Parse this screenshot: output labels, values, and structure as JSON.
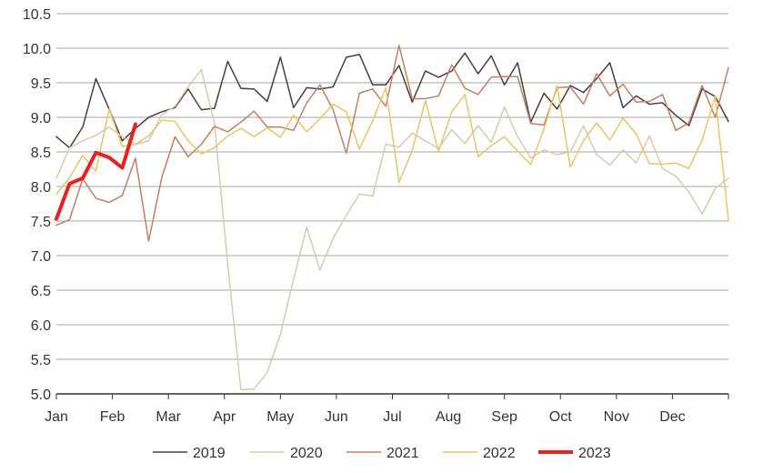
{
  "chart_data": {
    "type": "line",
    "title": "",
    "xlabel": "",
    "ylabel": "",
    "ylim": [
      5.0,
      10.5
    ],
    "yticks": [
      "5.0",
      "5.5",
      "6.0",
      "6.5",
      "7.0",
      "7.5",
      "8.0",
      "8.5",
      "9.0",
      "9.5",
      "10.0",
      "10.5"
    ],
    "xticks": [
      "Jan",
      "Feb",
      "Mar",
      "Apr",
      "May",
      "Jun",
      "Jul",
      "Aug",
      "Sep",
      "Oct",
      "Nov",
      "Dec"
    ],
    "grid": "horizontal",
    "legend_position": "bottom",
    "series": [
      {
        "name": "2019",
        "color": "#4a3f38",
        "width": 1.5,
        "values": [
          8.72,
          8.56,
          8.86,
          9.56,
          9.12,
          8.66,
          8.84,
          9.0,
          9.08,
          9.14,
          9.41,
          9.11,
          9.13,
          9.81,
          9.42,
          9.41,
          9.23,
          9.87,
          9.14,
          9.43,
          9.41,
          9.44,
          9.87,
          9.91,
          9.47,
          9.47,
          9.75,
          9.22,
          9.67,
          9.58,
          9.67,
          9.93,
          9.63,
          9.89,
          9.47,
          9.79,
          8.93,
          9.35,
          9.12,
          9.46,
          9.36,
          9.56,
          9.79,
          9.14,
          9.31,
          9.19,
          9.21,
          9.03,
          8.88,
          9.41,
          9.3,
          8.94
        ]
      },
      {
        "name": "2020",
        "color": "#d8c9b1",
        "width": 1.5,
        "values": [
          8.12,
          8.56,
          8.66,
          8.74,
          8.86,
          8.72,
          8.61,
          8.66,
          9.04,
          9.16,
          9.44,
          9.69,
          8.91,
          6.88,
          5.06,
          5.07,
          5.31,
          5.86,
          6.66,
          7.41,
          6.79,
          7.25,
          7.58,
          7.89,
          7.86,
          8.61,
          8.57,
          8.77,
          8.66,
          8.55,
          8.82,
          8.62,
          8.88,
          8.64,
          9.15,
          8.72,
          8.41,
          8.53,
          8.46,
          8.5,
          8.88,
          8.46,
          8.31,
          8.53,
          8.34,
          8.73,
          8.26,
          8.15,
          7.92,
          7.6,
          7.97,
          8.12
        ]
      },
      {
        "name": "2021",
        "color": "#c07f66",
        "width": 1.5,
        "values": [
          7.44,
          7.52,
          8.11,
          7.83,
          7.77,
          7.87,
          8.41,
          7.21,
          8.13,
          8.72,
          8.43,
          8.61,
          8.87,
          8.79,
          8.93,
          9.09,
          8.86,
          8.86,
          8.81,
          9.21,
          9.47,
          9.11,
          8.48,
          9.35,
          9.41,
          9.16,
          10.04,
          9.27,
          9.27,
          9.31,
          9.76,
          9.42,
          9.33,
          9.58,
          9.59,
          9.59,
          8.91,
          8.89,
          9.43,
          9.44,
          9.19,
          9.63,
          9.31,
          9.48,
          9.22,
          9.23,
          9.33,
          8.81,
          8.92,
          9.46,
          9.0,
          9.72
        ]
      },
      {
        "name": "2022",
        "color": "#e3c769",
        "width": 1.5,
        "values": [
          7.89,
          8.13,
          8.45,
          8.22,
          9.12,
          8.58,
          8.61,
          8.73,
          8.96,
          8.94,
          8.66,
          8.47,
          8.56,
          8.73,
          8.84,
          8.72,
          8.85,
          8.71,
          9.03,
          8.79,
          8.98,
          9.19,
          9.08,
          8.54,
          8.95,
          9.43,
          8.06,
          8.52,
          9.24,
          8.51,
          9.08,
          9.33,
          8.43,
          8.59,
          8.72,
          8.51,
          8.32,
          8.83,
          9.46,
          8.28,
          8.66,
          8.92,
          8.67,
          8.99,
          8.76,
          8.33,
          8.32,
          8.34,
          8.26,
          8.67,
          9.31,
          7.51
        ]
      },
      {
        "name": "2023",
        "color": "#e8201d",
        "width": 4,
        "values": [
          7.53,
          8.04,
          8.12,
          8.49,
          8.42,
          8.27,
          8.9
        ]
      }
    ]
  }
}
